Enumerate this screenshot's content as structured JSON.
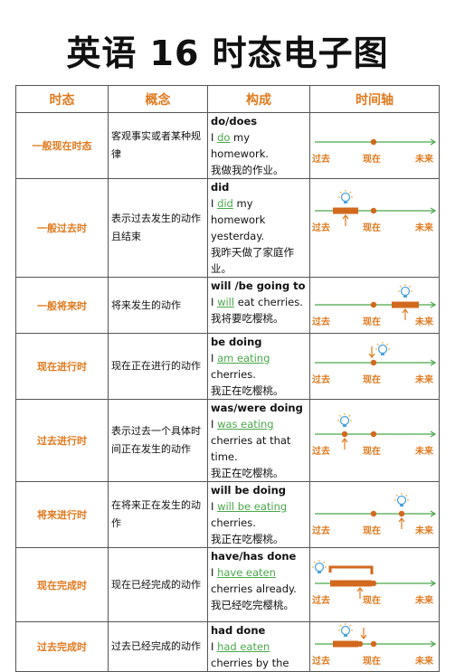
{
  "title": "英语 16 时态电子图",
  "headers": [
    "时态",
    "概念",
    "构成",
    "时间轴"
  ],
  "timeline_labels": {
    "past": "过去",
    "now": "现在",
    "future": "未来"
  },
  "rows": [
    {
      "tense": "一般现在时态",
      "concept": "客观事实或者某种规律",
      "formula": "do/does",
      "ex_pre": "I ",
      "ex_verb": "do",
      "ex_post": " my homework.",
      "ex_zh": "我做我的作业。",
      "timeline": "simple-present"
    },
    {
      "tense": "一般过去时",
      "concept": "表示过去发生的动作且结束",
      "formula": "did",
      "ex_pre": "I ",
      "ex_verb": "did",
      "ex_post": " my homework yesterday.",
      "ex_zh": "我昨天做了家庭作业。",
      "timeline": "simple-past"
    },
    {
      "tense": "一般将来时",
      "concept": "将来发生的动作",
      "formula": "will /be going to",
      "ex_pre": "I ",
      "ex_verb": "will",
      "ex_post": " eat cherries.",
      "ex_zh": "我将要吃樱桃。",
      "timeline": "simple-future"
    },
    {
      "tense": "现在进行时",
      "concept": "现在正在进行的动作",
      "formula": "be doing",
      "ex_pre": "I ",
      "ex_verb": "am eating",
      "ex_post": " cherries.",
      "ex_zh": "我正在吃樱桃。",
      "timeline": "present-continuous"
    },
    {
      "tense": "过去进行时",
      "concept": "表示过去一个具体时间正在发生的动作",
      "formula": "was/were doing",
      "ex_pre": "I ",
      "ex_verb": "was eating",
      "ex_post": " cherries at that time.",
      "ex_zh": "我正在吃樱桃。",
      "timeline": "past-continuous"
    },
    {
      "tense": "将来进行时",
      "concept": "在将来正在发生的动作",
      "formula": "will be doing",
      "ex_pre": "I ",
      "ex_verb": "will be eating",
      "ex_post": " cherries.",
      "ex_zh": "我正在吃樱桃。",
      "timeline": "future-continuous"
    },
    {
      "tense": "现在完成时",
      "concept": "现在已经完成的动作",
      "formula": "have/has done",
      "ex_pre": "I ",
      "ex_verb": "have eaten",
      "ex_post": " cherries already.",
      "ex_zh": "我已经吃完樱桃。",
      "timeline": "present-perfect"
    },
    {
      "tense": "过去完成时",
      "concept": "过去已经完成的动作",
      "formula": "had done",
      "ex_pre": "I ",
      "ex_verb": "had eaten",
      "ex_post": " cherries by the",
      "ex_zh": "",
      "timeline": "past-perfect"
    }
  ],
  "colors": {
    "accent": "#e07a1f",
    "line": "#4aa84a",
    "bar": "#d2691e",
    "bulb": "#4aa3df"
  }
}
